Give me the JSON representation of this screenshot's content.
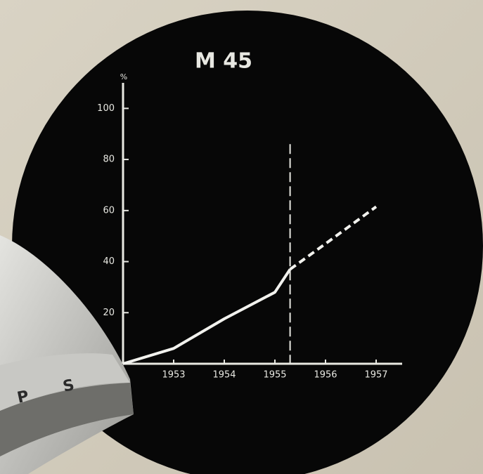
{
  "chart_data": {
    "type": "line",
    "title": "M 45",
    "y_label": "%",
    "x": [
      1952,
      1953,
      1954,
      1955,
      1955.3,
      1956,
      1957
    ],
    "series": [
      {
        "color": "#f2f2ee",
        "dashed": false,
        "values": [
          0,
          6,
          17.6,
          28,
          37,
          null,
          null
        ]
      },
      {
        "color": "#f2f2ee",
        "dashed": true,
        "values": [
          null,
          null,
          null,
          null,
          37,
          47,
          61.5
        ]
      }
    ],
    "xlim": [
      1952,
      1957.5
    ],
    "xticks": [
      1953,
      1954,
      1955,
      1956,
      1957
    ],
    "ylim": [
      0,
      110
    ],
    "yticks": [
      20,
      40,
      60,
      80,
      100
    ],
    "reference_line": {
      "x": 1955.3,
      "y_top": 86
    }
  },
  "device_letters": [
    "P",
    "S"
  ]
}
